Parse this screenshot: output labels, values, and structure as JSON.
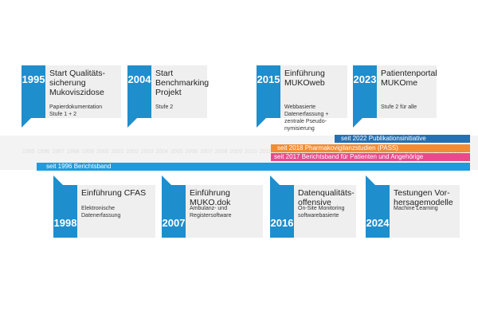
{
  "milestones_top": [
    {
      "year": "1995",
      "title": "Start Qualitäts-<br>sicherung<br>Mukoviszidose",
      "desc": "Papierdokumentation<br>Stufe 1 + 2"
    },
    {
      "year": "2004",
      "title": "Start<br>Benchmarking<br>Projekt",
      "desc": "Stufe 2"
    },
    {
      "year": "2015",
      "title": "Einführung<br>MUKOweb",
      "desc": "Webbasierte<br>Datenerfassung +<br>zentrale Pseudo-<br>nymisierung"
    },
    {
      "year": "2023",
      "title": "Patientenportal<br>MUKOme",
      "desc": "Stufe 2 für alle"
    }
  ],
  "milestones_bottom": [
    {
      "year": "1998",
      "title": "Einführung CFAS",
      "desc": "Elektronische<br>Datenerfassung"
    },
    {
      "year": "2007",
      "title": "Einführung<br>MUKO.dok",
      "desc": "Ambulanz- und<br>Registersoftware"
    },
    {
      "year": "2016",
      "title": "Datenqualitäts-<br>offensive",
      "desc": "On-Site Monitoring<br>softwarebasierte"
    },
    {
      "year": "2024",
      "title": "Testungen Vor-<br>hersagemodelle",
      "desc": "Machine Learning"
    }
  ],
  "bands": [
    {
      "label": "seit 2022 Publikationsinitiative",
      "color": "#2470b3"
    },
    {
      "label": "seit 2018 Pharmakovigilanzstudien (PASS)",
      "color": "#f28c34"
    },
    {
      "label": "seit 2017 Berichtsband für Patienten und Angehörige",
      "color": "#e74b8a"
    },
    {
      "label": "seit 1996 Berichtsband",
      "color": "#1e9be0"
    }
  ],
  "timeline_years": [
    "1995",
    "1996",
    "1997",
    "1998",
    "1999",
    "2000",
    "2001",
    "2002",
    "2003",
    "2004",
    "2005",
    "2006",
    "2007",
    "2008",
    "2009",
    "2010",
    "2011",
    "2012",
    "2013",
    "2014",
    "2015",
    "2016",
    "2017",
    "2018",
    "2019",
    "2020",
    "2021",
    "2022",
    "2023",
    "2024"
  ]
}
